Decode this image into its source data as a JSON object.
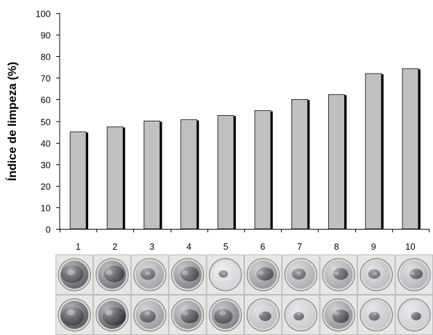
{
  "chart_data": {
    "type": "bar",
    "categories": [
      "1",
      "2",
      "3",
      "4",
      "5",
      "6",
      "7",
      "8",
      "9",
      "10"
    ],
    "values": [
      45,
      47.3,
      50,
      50.6,
      52.6,
      54.8,
      60,
      62.3,
      72,
      74.3
    ],
    "title": "",
    "xlabel": "",
    "ylabel": "Índice de limpeza (%)",
    "ylim": [
      0,
      100
    ],
    "yticks": [
      "0",
      "10",
      "20",
      "30",
      "40",
      "50",
      "60",
      "70",
      "80",
      "90",
      "100"
    ],
    "grid": false,
    "bar_color": "#c0c0c0",
    "shadow_color": "#000000"
  },
  "photos": {
    "description_colors": {
      "rim": "#d8d8d8",
      "dark": "#2a2c33",
      "light": "#f2f2f2"
    },
    "cleanliness_top": [
      0.15,
      0.25,
      0.55,
      0.35,
      0.85,
      0.45,
      0.6,
      0.55,
      0.7,
      0.65
    ],
    "cleanliness_bottom": [
      0.1,
      0.12,
      0.5,
      0.4,
      0.35,
      0.7,
      0.78,
      0.45,
      0.75,
      0.8
    ]
  }
}
